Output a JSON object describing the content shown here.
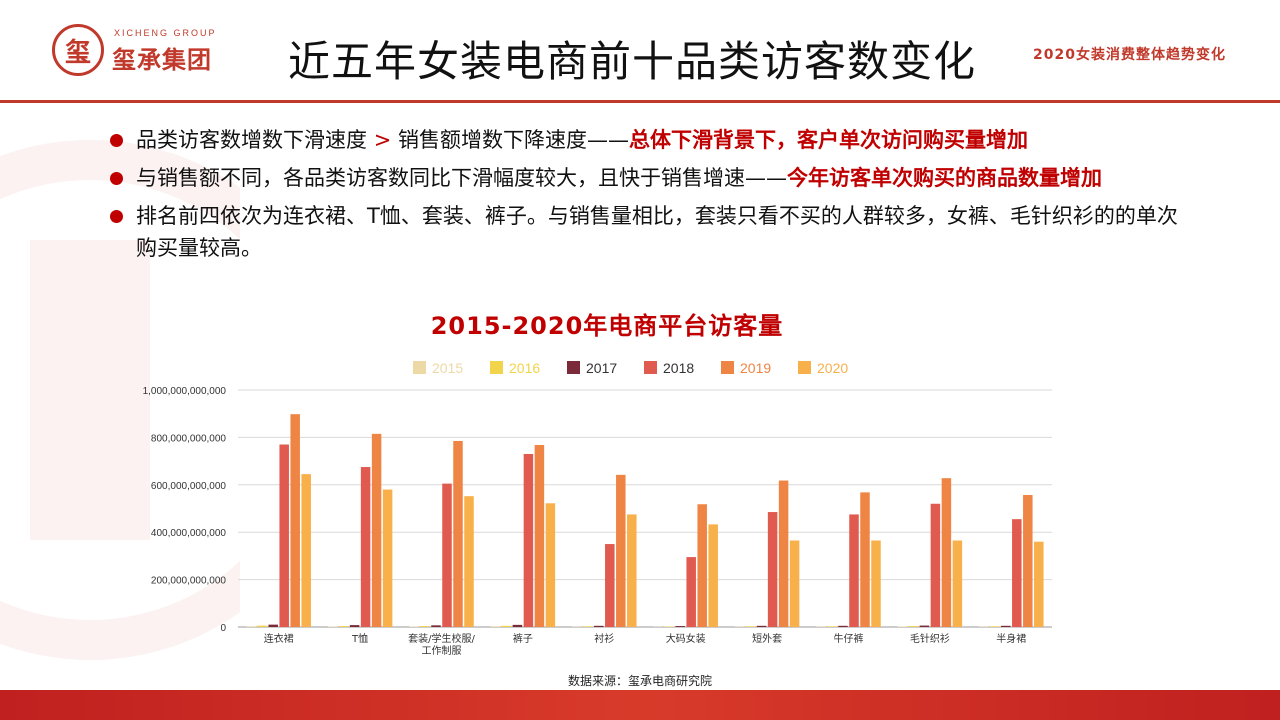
{
  "header": {
    "logo_text_en": "XICHENG GROUP",
    "logo_text_cn": "玺承集团",
    "logo_seal_char": "玺",
    "title": "近五年女装电商前十品类访客数变化",
    "subtitle": "2020女装消费整体趋势变化"
  },
  "bullets": [
    {
      "text": "品类访客数增数下滑速度",
      "gt": ">",
      "text2": "销售额增数下降速度——",
      "emphasis": "总体下滑背景下，客户单次访问购买量增加"
    },
    {
      "text": "与销售额不同，各品类访客数同比下滑幅度较大，且快于销售增速——",
      "emphasis": "今年访客单次购买的商品数量增加"
    },
    {
      "text": "排名前四依次为连衣裙、T恤、套装、裤子。与销售量相比，套装只看不买的人群较多，女裤、毛针织衫的的单次购买量较高。"
    }
  ],
  "chart_data": {
    "type": "bar",
    "title": "2015-2020年电商平台访客量",
    "categories": [
      "连衣裙",
      "T恤",
      "套装/学生校服/工作制服",
      "裤子",
      "衬衫",
      "大码女装",
      "短外套",
      "牛仔裤",
      "毛针织衫",
      "半身裙"
    ],
    "series": [
      {
        "name": "2015",
        "color": "#ecd9a6",
        "values": [
          3000000000,
          2000000000,
          2000000000,
          3000000000,
          1500000000,
          1000000000,
          1500000000,
          1500000000,
          2000000000,
          1500000000
        ]
      },
      {
        "name": "2016",
        "color": "#f2d44a",
        "values": [
          6000000000,
          4000000000,
          4000000000,
          5000000000,
          3000000000,
          2000000000,
          3000000000,
          3000000000,
          4000000000,
          3000000000
        ]
      },
      {
        "name": "2017",
        "color": "#7b2a3a",
        "values": [
          10000000000,
          8000000000,
          7000000000,
          9000000000,
          5000000000,
          4000000000,
          5000000000,
          5000000000,
          6000000000,
          5000000000
        ]
      },
      {
        "name": "2018",
        "color": "#e05a4f",
        "values": [
          770000000000,
          675000000000,
          605000000000,
          730000000000,
          350000000000,
          295000000000,
          485000000000,
          475000000000,
          520000000000,
          455000000000
        ]
      },
      {
        "name": "2019",
        "color": "#ef8545",
        "values": [
          898000000000,
          815000000000,
          785000000000,
          768000000000,
          642000000000,
          518000000000,
          618000000000,
          568000000000,
          628000000000,
          557000000000
        ]
      },
      {
        "name": "2020",
        "color": "#f8b04a",
        "values": [
          645000000000,
          580000000000,
          552000000000,
          522000000000,
          475000000000,
          433000000000,
          365000000000,
          365000000000,
          365000000000,
          360000000000
        ]
      }
    ],
    "ylim": [
      0,
      1000000000000
    ],
    "yticks": [
      0,
      200000000000,
      400000000000,
      600000000000,
      800000000000,
      1000000000000
    ],
    "ytick_labels": [
      "0",
      "200,000,000,000",
      "400,000,000,000",
      "600,000,000,000",
      "800,000,000,000",
      "1,000,000,000,000"
    ],
    "legend_position": "top",
    "grid": true
  },
  "source": "数据来源：玺承电商研究院"
}
